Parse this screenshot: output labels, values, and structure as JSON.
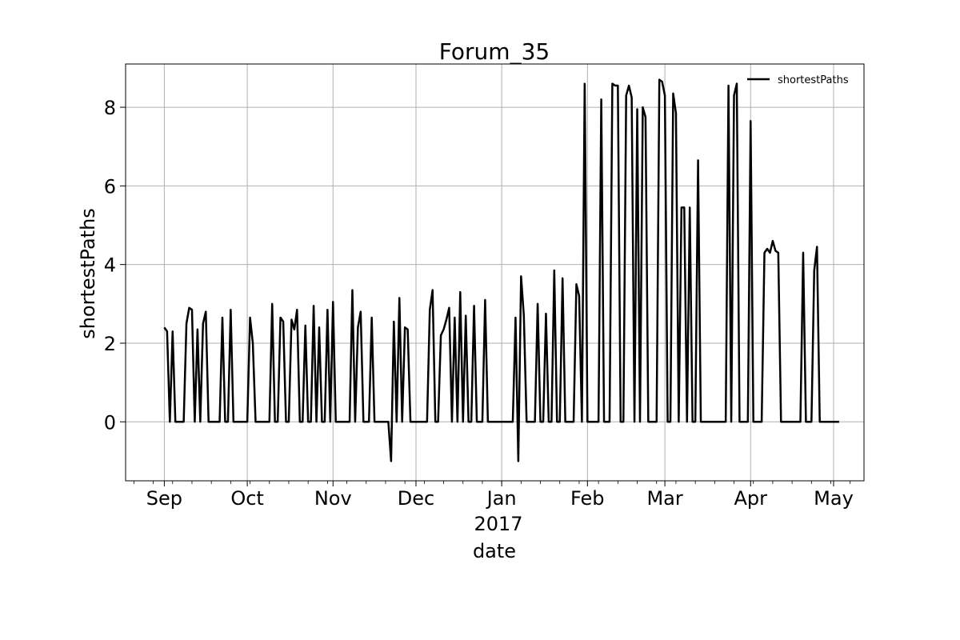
{
  "chart_data": {
    "type": "line",
    "title": "Forum_35",
    "xlabel": "date",
    "ylabel": "shortestPaths",
    "x_tick_labels": [
      "Sep",
      "Oct",
      "Nov",
      "Dec",
      "Jan",
      "Feb",
      "Mar",
      "Apr",
      "May"
    ],
    "x_tick_dates": [
      "2016-09-01",
      "2016-10-01",
      "2016-11-01",
      "2016-12-01",
      "2017-01-01",
      "2017-02-01",
      "2017-03-01",
      "2017-04-01",
      "2017-05-01"
    ],
    "x_year_label": "2017",
    "y_ticks": [
      0,
      2,
      4,
      6,
      8
    ],
    "xlim": [
      "2016-08-18",
      "2017-05-12"
    ],
    "ylim": [
      -1.5,
      9.1
    ],
    "grid": true,
    "legend_position": "top-right",
    "series": [
      {
        "name": "shortestPaths",
        "color": "#000000",
        "points": [
          [
            "2016-09-01",
            2.4
          ],
          [
            "2016-09-02",
            2.3
          ],
          [
            "2016-09-03",
            0
          ],
          [
            "2016-09-04",
            2.3
          ],
          [
            "2016-09-05",
            0
          ],
          [
            "2016-09-06",
            0
          ],
          [
            "2016-09-07",
            0
          ],
          [
            "2016-09-08",
            0
          ],
          [
            "2016-09-09",
            2.5
          ],
          [
            "2016-09-10",
            2.9
          ],
          [
            "2016-09-11",
            2.85
          ],
          [
            "2016-09-12",
            0
          ],
          [
            "2016-09-13",
            2.35
          ],
          [
            "2016-09-14",
            0
          ],
          [
            "2016-09-15",
            2.5
          ],
          [
            "2016-09-16",
            2.8
          ],
          [
            "2016-09-17",
            0
          ],
          [
            "2016-09-18",
            0
          ],
          [
            "2016-09-19",
            0
          ],
          [
            "2016-09-20",
            0
          ],
          [
            "2016-09-21",
            0
          ],
          [
            "2016-09-22",
            2.65
          ],
          [
            "2016-09-23",
            0
          ],
          [
            "2016-09-24",
            0
          ],
          [
            "2016-09-25",
            2.85
          ],
          [
            "2016-09-26",
            0
          ],
          [
            "2016-09-27",
            0
          ],
          [
            "2016-09-28",
            0
          ],
          [
            "2016-09-29",
            0
          ],
          [
            "2016-09-30",
            0
          ],
          [
            "2016-10-01",
            0
          ],
          [
            "2016-10-02",
            2.65
          ],
          [
            "2016-10-03",
            2.0
          ],
          [
            "2016-10-04",
            0
          ],
          [
            "2016-10-05",
            0
          ],
          [
            "2016-10-06",
            0
          ],
          [
            "2016-10-07",
            0
          ],
          [
            "2016-10-08",
            0
          ],
          [
            "2016-10-09",
            0
          ],
          [
            "2016-10-10",
            3.0
          ],
          [
            "2016-10-11",
            0
          ],
          [
            "2016-10-12",
            0
          ],
          [
            "2016-10-13",
            2.65
          ],
          [
            "2016-10-14",
            2.55
          ],
          [
            "2016-10-15",
            0
          ],
          [
            "2016-10-16",
            0
          ],
          [
            "2016-10-17",
            2.6
          ],
          [
            "2016-10-18",
            2.35
          ],
          [
            "2016-10-19",
            2.85
          ],
          [
            "2016-10-20",
            0
          ],
          [
            "2016-10-21",
            0
          ],
          [
            "2016-10-22",
            2.45
          ],
          [
            "2016-10-23",
            0
          ],
          [
            "2016-10-24",
            0
          ],
          [
            "2016-10-25",
            2.95
          ],
          [
            "2016-10-26",
            0
          ],
          [
            "2016-10-27",
            2.4
          ],
          [
            "2016-10-28",
            0
          ],
          [
            "2016-10-29",
            0
          ],
          [
            "2016-10-30",
            2.85
          ],
          [
            "2016-10-31",
            0
          ],
          [
            "2016-11-01",
            3.05
          ],
          [
            "2016-11-02",
            0
          ],
          [
            "2016-11-03",
            0
          ],
          [
            "2016-11-04",
            0
          ],
          [
            "2016-11-05",
            0
          ],
          [
            "2016-11-06",
            0
          ],
          [
            "2016-11-07",
            0
          ],
          [
            "2016-11-08",
            3.35
          ],
          [
            "2016-11-09",
            0
          ],
          [
            "2016-11-10",
            2.4
          ],
          [
            "2016-11-11",
            2.8
          ],
          [
            "2016-11-12",
            0
          ],
          [
            "2016-11-13",
            0
          ],
          [
            "2016-11-14",
            0
          ],
          [
            "2016-11-15",
            2.65
          ],
          [
            "2016-11-16",
            0
          ],
          [
            "2016-11-17",
            0
          ],
          [
            "2016-11-18",
            0
          ],
          [
            "2016-11-19",
            0
          ],
          [
            "2016-11-20",
            0
          ],
          [
            "2016-11-21",
            0
          ],
          [
            "2016-11-22",
            -1.0
          ],
          [
            "2016-11-23",
            2.55
          ],
          [
            "2016-11-24",
            0
          ],
          [
            "2016-11-25",
            3.15
          ],
          [
            "2016-11-26",
            0
          ],
          [
            "2016-11-27",
            2.4
          ],
          [
            "2016-11-28",
            2.35
          ],
          [
            "2016-11-29",
            0
          ],
          [
            "2016-11-30",
            0
          ],
          [
            "2016-12-01",
            0
          ],
          [
            "2016-12-02",
            0
          ],
          [
            "2016-12-03",
            0
          ],
          [
            "2016-12-04",
            0
          ],
          [
            "2016-12-05",
            0
          ],
          [
            "2016-12-06",
            2.85
          ],
          [
            "2016-12-07",
            3.35
          ],
          [
            "2016-12-08",
            0
          ],
          [
            "2016-12-09",
            0
          ],
          [
            "2016-12-10",
            2.2
          ],
          [
            "2016-12-11",
            2.35
          ],
          [
            "2016-12-12",
            2.6
          ],
          [
            "2016-12-13",
            2.9
          ],
          [
            "2016-12-14",
            0
          ],
          [
            "2016-12-15",
            2.65
          ],
          [
            "2016-12-16",
            0
          ],
          [
            "2016-12-17",
            3.3
          ],
          [
            "2016-12-18",
            0
          ],
          [
            "2016-12-19",
            2.7
          ],
          [
            "2016-12-20",
            0
          ],
          [
            "2016-12-21",
            0
          ],
          [
            "2016-12-22",
            2.95
          ],
          [
            "2016-12-23",
            0
          ],
          [
            "2016-12-24",
            0
          ],
          [
            "2016-12-25",
            0
          ],
          [
            "2016-12-26",
            3.1
          ],
          [
            "2016-12-27",
            0
          ],
          [
            "2016-12-28",
            0
          ],
          [
            "2016-12-29",
            0
          ],
          [
            "2016-12-30",
            0
          ],
          [
            "2016-12-31",
            0
          ],
          [
            "2017-01-01",
            0
          ],
          [
            "2017-01-02",
            0
          ],
          [
            "2017-01-03",
            0
          ],
          [
            "2017-01-04",
            0
          ],
          [
            "2017-01-05",
            0
          ],
          [
            "2017-01-06",
            2.65
          ],
          [
            "2017-01-07",
            -1.0
          ],
          [
            "2017-01-08",
            3.7
          ],
          [
            "2017-01-09",
            2.7
          ],
          [
            "2017-01-10",
            0
          ],
          [
            "2017-01-11",
            0
          ],
          [
            "2017-01-12",
            0
          ],
          [
            "2017-01-13",
            0
          ],
          [
            "2017-01-14",
            3.0
          ],
          [
            "2017-01-15",
            0
          ],
          [
            "2017-01-16",
            0
          ],
          [
            "2017-01-17",
            2.75
          ],
          [
            "2017-01-18",
            0
          ],
          [
            "2017-01-19",
            0
          ],
          [
            "2017-01-20",
            3.85
          ],
          [
            "2017-01-21",
            0
          ],
          [
            "2017-01-22",
            0
          ],
          [
            "2017-01-23",
            3.65
          ],
          [
            "2017-01-24",
            0
          ],
          [
            "2017-01-25",
            0
          ],
          [
            "2017-01-26",
            0
          ],
          [
            "2017-01-27",
            0
          ],
          [
            "2017-01-28",
            3.5
          ],
          [
            "2017-01-29",
            3.2
          ],
          [
            "2017-01-30",
            0
          ],
          [
            "2017-01-31",
            8.6
          ],
          [
            "2017-02-01",
            0
          ],
          [
            "2017-02-02",
            0
          ],
          [
            "2017-02-03",
            0
          ],
          [
            "2017-02-04",
            0
          ],
          [
            "2017-02-05",
            0
          ],
          [
            "2017-02-06",
            8.2
          ],
          [
            "2017-02-07",
            0
          ],
          [
            "2017-02-08",
            0
          ],
          [
            "2017-02-09",
            0
          ],
          [
            "2017-02-10",
            8.6
          ],
          [
            "2017-02-11",
            8.55
          ],
          [
            "2017-02-12",
            8.55
          ],
          [
            "2017-02-13",
            0
          ],
          [
            "2017-02-14",
            0
          ],
          [
            "2017-02-15",
            8.3
          ],
          [
            "2017-02-16",
            8.55
          ],
          [
            "2017-02-17",
            8.25
          ],
          [
            "2017-02-18",
            0
          ],
          [
            "2017-02-19",
            7.95
          ],
          [
            "2017-02-20",
            0
          ],
          [
            "2017-02-21",
            8.0
          ],
          [
            "2017-02-22",
            7.75
          ],
          [
            "2017-02-23",
            0
          ],
          [
            "2017-02-24",
            0
          ],
          [
            "2017-02-25",
            0
          ],
          [
            "2017-02-26",
            0
          ],
          [
            "2017-02-27",
            8.7
          ],
          [
            "2017-02-28",
            8.65
          ],
          [
            "2017-03-01",
            8.3
          ],
          [
            "2017-03-02",
            0
          ],
          [
            "2017-03-03",
            0
          ],
          [
            "2017-03-04",
            8.35
          ],
          [
            "2017-03-05",
            7.85
          ],
          [
            "2017-03-06",
            0
          ],
          [
            "2017-03-07",
            5.45
          ],
          [
            "2017-03-08",
            5.45
          ],
          [
            "2017-03-09",
            0
          ],
          [
            "2017-03-10",
            5.45
          ],
          [
            "2017-03-11",
            0
          ],
          [
            "2017-03-12",
            0
          ],
          [
            "2017-03-13",
            6.65
          ],
          [
            "2017-03-14",
            0
          ],
          [
            "2017-03-15",
            0
          ],
          [
            "2017-03-16",
            0
          ],
          [
            "2017-03-17",
            0
          ],
          [
            "2017-03-18",
            0
          ],
          [
            "2017-03-19",
            0
          ],
          [
            "2017-03-20",
            0
          ],
          [
            "2017-03-21",
            0
          ],
          [
            "2017-03-22",
            0
          ],
          [
            "2017-03-23",
            0
          ],
          [
            "2017-03-24",
            8.55
          ],
          [
            "2017-03-25",
            0
          ],
          [
            "2017-03-26",
            8.3
          ],
          [
            "2017-03-27",
            8.6
          ],
          [
            "2017-03-28",
            0
          ],
          [
            "2017-03-29",
            0
          ],
          [
            "2017-03-30",
            0
          ],
          [
            "2017-03-31",
            0
          ],
          [
            "2017-04-01",
            7.65
          ],
          [
            "2017-04-02",
            0
          ],
          [
            "2017-04-03",
            0
          ],
          [
            "2017-04-04",
            0
          ],
          [
            "2017-04-05",
            0
          ],
          [
            "2017-04-06",
            4.3
          ],
          [
            "2017-04-07",
            4.4
          ],
          [
            "2017-04-08",
            4.3
          ],
          [
            "2017-04-09",
            4.6
          ],
          [
            "2017-04-10",
            4.35
          ],
          [
            "2017-04-11",
            4.3
          ],
          [
            "2017-04-12",
            0
          ],
          [
            "2017-04-13",
            0
          ],
          [
            "2017-04-14",
            0
          ],
          [
            "2017-04-15",
            0
          ],
          [
            "2017-04-16",
            0
          ],
          [
            "2017-04-17",
            0
          ],
          [
            "2017-04-18",
            0
          ],
          [
            "2017-04-19",
            0
          ],
          [
            "2017-04-20",
            4.3
          ],
          [
            "2017-04-21",
            0
          ],
          [
            "2017-04-22",
            0
          ],
          [
            "2017-04-23",
            0
          ],
          [
            "2017-04-24",
            3.85
          ],
          [
            "2017-04-25",
            4.45
          ],
          [
            "2017-04-26",
            0
          ],
          [
            "2017-04-27",
            0
          ],
          [
            "2017-04-28",
            0
          ],
          [
            "2017-04-29",
            0
          ],
          [
            "2017-04-30",
            0
          ],
          [
            "2017-05-01",
            0
          ],
          [
            "2017-05-02",
            0
          ],
          [
            "2017-05-03",
            0
          ]
        ]
      }
    ]
  }
}
